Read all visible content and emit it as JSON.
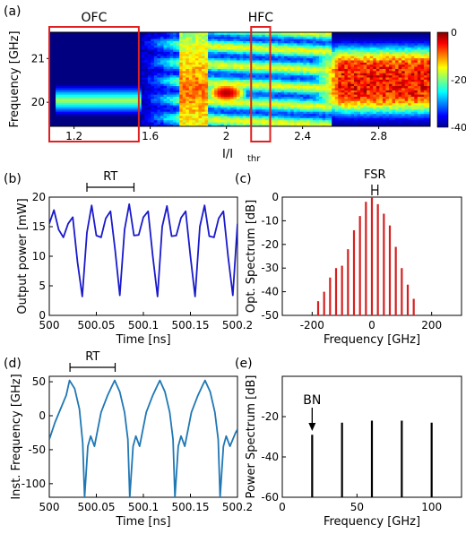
{
  "chart_data": [
    {
      "id": "a",
      "panel_label": "(a)",
      "type": "heatmap",
      "xlabel": "I/I",
      "xlabel_sub": "thr",
      "ylabel": "Frequency [GHz]",
      "xlim": [
        1.07,
        3.07
      ],
      "ylim": [
        19.45,
        21.6
      ],
      "xticks": [
        "1.2",
        "1.6",
        "2",
        "2.4",
        "2.8"
      ],
      "xtick_values": [
        1.2,
        1.6,
        2.0,
        2.4,
        2.8
      ],
      "yticks": [
        "20",
        "21"
      ],
      "ytick_values": [
        20,
        21
      ],
      "colorbar": {
        "min": -40,
        "max": 0,
        "ticks": [
          "0",
          "-20",
          "-40"
        ],
        "tick_values": [
          0,
          -20,
          -40
        ]
      },
      "annotations": [
        {
          "text": "OFC",
          "x_range": [
            1.07,
            1.54
          ]
        },
        {
          "text": "HFC",
          "x_range": [
            2.13,
            2.23
          ]
        }
      ],
      "features": {
        "ofc_line_freq": 20.05,
        "ofc_line_x": [
          1.1,
          1.55
        ],
        "pulse_blob": {
          "x": 2.0,
          "y": 20.22,
          "value": -2
        },
        "transition_x": 1.8,
        "broad_region_x": [
          2.55,
          3.07
        ],
        "broad_region_y": [
          19.8,
          21.3
        ]
      }
    },
    {
      "id": "b",
      "panel_label": "(b)",
      "type": "line",
      "xlabel": "Time [ns]",
      "ylabel": "Output power [mW]",
      "xlim": [
        500,
        500.2
      ],
      "ylim": [
        0,
        20
      ],
      "xticks": [
        "500",
        "500.05",
        "500.1",
        "500.15",
        "500.2"
      ],
      "xtick_values": [
        500,
        500.05,
        500.1,
        500.15,
        500.2
      ],
      "yticks": [
        "0",
        "5",
        "10",
        "15",
        "20"
      ],
      "ytick_values": [
        0,
        5,
        10,
        15,
        20
      ],
      "annotation": {
        "text": "RT",
        "x_range": [
          500.04,
          500.09
        ]
      },
      "series": [
        {
          "color": "#1a1acc",
          "x": [
            500,
            500.005,
            500.01,
            500.015,
            500.02,
            500.025,
            500.03,
            500.035,
            500.04,
            500.045,
            500.05,
            500.055,
            500.06,
            500.065,
            500.07,
            500.075,
            500.08,
            500.085,
            500.09,
            500.095,
            500.1,
            500.105,
            500.11,
            500.115,
            500.12,
            500.125,
            500.13,
            500.135,
            500.14,
            500.145,
            500.15,
            500.155,
            500.16,
            500.165,
            500.17,
            500.175,
            500.18,
            500.185,
            500.19,
            500.195,
            500.2
          ],
          "values": [
            15.5,
            17.8,
            14.5,
            13.2,
            15.5,
            16.6,
            9.0,
            3.2,
            14.0,
            18.6,
            13.5,
            13.2,
            16.4,
            17.6,
            11.0,
            3.4,
            14.5,
            18.8,
            13.5,
            13.6,
            16.6,
            17.6,
            10.0,
            3.2,
            15.0,
            18.5,
            13.4,
            13.5,
            16.5,
            17.6,
            10.0,
            3.2,
            15.0,
            18.6,
            13.4,
            13.2,
            16.4,
            17.6,
            10.0,
            3.4,
            15.5
          ]
        }
      ]
    },
    {
      "id": "c",
      "panel_label": "(c)",
      "type": "bar",
      "xlabel": "Frequency [GHz]",
      "ylabel": "Opt. Spectrum [dB]",
      "xlim": [
        -300,
        300
      ],
      "ylim": [
        -50,
        0
      ],
      "xticks": [
        "-200",
        "0",
        "200"
      ],
      "xtick_values": [
        -200,
        0,
        200
      ],
      "yticks": [
        "0",
        "-10",
        "-20",
        "-30",
        "-40",
        "-50"
      ],
      "ytick_values": [
        0,
        -10,
        -20,
        -30,
        -40,
        -50
      ],
      "annotation": {
        "text": "FSR",
        "x_range": [
          0,
          20
        ]
      },
      "series": [
        {
          "color": "#d62020",
          "x": [
            -180,
            -160,
            -140,
            -120,
            -100,
            -80,
            -60,
            -40,
            -20,
            0,
            20,
            40,
            60,
            80,
            100,
            120,
            140
          ],
          "values": [
            -44,
            -40,
            -34,
            -30,
            -29,
            -22,
            -14,
            -8,
            -2,
            0,
            -3,
            -7,
            -12,
            -21,
            -30,
            -37,
            -43
          ]
        }
      ]
    },
    {
      "id": "d",
      "panel_label": "(d)",
      "type": "line",
      "xlabel": "Time [ns]",
      "ylabel": "Inst. Frequency [GHz]",
      "xlim": [
        500,
        500.2
      ],
      "ylim": [
        -120,
        58
      ],
      "xticks": [
        "500",
        "500.05",
        "500.1",
        "500.15",
        "500.2"
      ],
      "xtick_values": [
        500,
        500.05,
        500.1,
        500.15,
        500.2
      ],
      "yticks": [
        "50",
        "0",
        "-50",
        "-100"
      ],
      "ytick_values": [
        50,
        0,
        -50,
        -100
      ],
      "annotation": {
        "text": "RT",
        "x_range": [
          500.022,
          500.07
        ]
      },
      "series": [
        {
          "color": "#1f77b4",
          "x": [
            500,
            500.006,
            500.012,
            500.018,
            500.0215,
            500.027,
            500.032,
            500.0355,
            500.0375,
            500.041,
            500.044,
            500.048,
            500.055,
            500.062,
            500.067,
            500.0695,
            500.075,
            500.08,
            500.0835,
            500.0855,
            500.089,
            500.092,
            500.096,
            500.103,
            500.11,
            500.115,
            500.1175,
            500.123,
            500.128,
            500.1315,
            500.1335,
            500.137,
            500.14,
            500.144,
            500.151,
            500.158,
            500.163,
            500.1655,
            500.171,
            500.176,
            500.1795,
            500.1815,
            500.185,
            500.188,
            500.192,
            500.198,
            500.2
          ],
          "values": [
            -35,
            -10,
            10,
            30,
            52,
            40,
            10,
            -40,
            -120,
            -45,
            -30,
            -45,
            5,
            30,
            45,
            52,
            35,
            5,
            -35,
            -120,
            -45,
            -30,
            -45,
            5,
            30,
            45,
            52,
            35,
            5,
            -35,
            -120,
            -45,
            -30,
            -45,
            5,
            30,
            45,
            52,
            35,
            5,
            -35,
            -120,
            -45,
            -30,
            -45,
            -25,
            -20
          ]
        }
      ]
    },
    {
      "id": "e",
      "panel_label": "(e)",
      "type": "bar",
      "xlabel": "Frequency [GHz]",
      "ylabel": "Power Spectrum [dB]",
      "xlim": [
        0,
        120
      ],
      "ylim": [
        -60,
        0
      ],
      "xticks": [
        "0",
        "50",
        "100"
      ],
      "xtick_values": [
        0,
        50,
        100
      ],
      "yticks": [
        "-20",
        "-40",
        "-60"
      ],
      "ytick_values": [
        -20,
        -40,
        -60
      ],
      "annotation": {
        "text": "BN",
        "x": 20
      },
      "series": [
        {
          "color": "#000000",
          "x": [
            20,
            40,
            60,
            80,
            100
          ],
          "values": [
            -29,
            -23,
            -22,
            -22,
            -23
          ]
        }
      ]
    }
  ]
}
